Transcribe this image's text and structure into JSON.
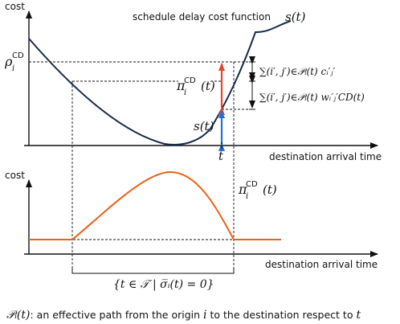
{
  "colors": {
    "curve_dark": "#1a2a4a",
    "curve_orange": "#e8631a",
    "arrow_red": "#e8462a",
    "arrow_blue": "#1e6fe0",
    "axis": "#111111",
    "guide": "#111111"
  },
  "top": {
    "y_axis_label": "cost",
    "x_axis_label": "destination arrival time",
    "curve_title": "schedule delay cost function",
    "curve_symbol": "s(t)",
    "rho_label": "ρ",
    "rho_sup": "CD",
    "rho_sub": "i",
    "pi_label": "π",
    "pi_sup": "CD",
    "pi_sub": "i",
    "pi_arg": "(t)",
    "s_label": "s(t)",
    "t_label": "t",
    "sum1_text": "∑(i′, j′)∈𝒫ᵢ(t) cᵢ′ⱼ′",
    "sum2_text": "∑(i′, j′)∈𝒫ᵢ(t) wᵢ′ⱼ′CD(t)"
  },
  "bottom": {
    "y_axis_label": "cost",
    "x_axis_label": "destination arrival time",
    "pi_label": "π",
    "pi_sup": "CD",
    "pi_sub": "i",
    "pi_arg": "(t)",
    "set_label": "{t ∈ 𝒯 | σ̅ᵢ(t) = 0}"
  },
  "caption": {
    "symbol": "𝒫ᵢ(t)",
    "text": ": an effective path from the origin ",
    "origin": "i",
    "text2": " to the destination respect to ",
    "t": "t"
  }
}
